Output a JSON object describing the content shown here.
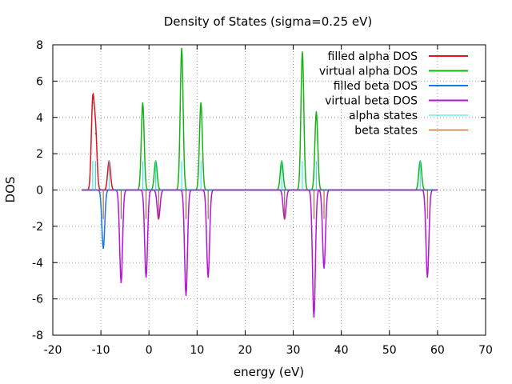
{
  "chart_data": {
    "type": "line",
    "title": "Density of States (sigma=0.25 eV)",
    "xlabel": "energy (eV)",
    "ylabel": "DOS",
    "xlim": [
      -20,
      70
    ],
    "ylim": [
      -8,
      8
    ],
    "xticks": [
      -20,
      -10,
      0,
      10,
      20,
      30,
      40,
      50,
      60,
      70
    ],
    "yticks": [
      -8,
      -6,
      -4,
      -2,
      0,
      2,
      4,
      6,
      8
    ],
    "grid": true,
    "legend_position": "top-right",
    "x_range": [
      -14,
      60
    ],
    "series": [
      {
        "name": "filled alpha DOS",
        "color": "#e0141e",
        "kind": "dos",
        "sign": 1,
        "peaks": [
          {
            "e": -11.7,
            "h": 4.8
          },
          {
            "e": -11.1,
            "h": 3.1
          },
          {
            "e": -8.3,
            "h": 1.6
          }
        ]
      },
      {
        "name": "virtual alpha DOS",
        "color": "#14b414",
        "kind": "dos",
        "sign": 1,
        "peaks": [
          {
            "e": -1.3,
            "h": 4.8
          },
          {
            "e": 1.4,
            "h": 1.6
          },
          {
            "e": 6.8,
            "h": 7.8
          },
          {
            "e": 10.8,
            "h": 4.8
          },
          {
            "e": 27.6,
            "h": 1.6
          },
          {
            "e": 31.9,
            "h": 7.6
          },
          {
            "e": 34.8,
            "h": 4.3
          },
          {
            "e": 56.4,
            "h": 1.6
          }
        ]
      },
      {
        "name": "filled beta DOS",
        "color": "#1478dc",
        "kind": "dos",
        "sign": -1,
        "peaks": [
          {
            "e": -9.5,
            "h": 3.2
          }
        ]
      },
      {
        "name": "virtual beta DOS",
        "color": "#b414dc",
        "kind": "dos",
        "sign": -1,
        "peaks": [
          {
            "e": -5.8,
            "h": 5.1
          },
          {
            "e": -0.6,
            "h": 4.8
          },
          {
            "e": 2.0,
            "h": 1.6
          },
          {
            "e": 7.7,
            "h": 5.8
          },
          {
            "e": 12.3,
            "h": 4.8
          },
          {
            "e": 28.2,
            "h": 1.6
          },
          {
            "e": 34.3,
            "h": 7.0
          },
          {
            "e": 36.4,
            "h": 4.3
          },
          {
            "e": 57.9,
            "h": 4.8
          }
        ]
      },
      {
        "name": "alpha states",
        "color": "#1ee6e6",
        "kind": "sticks",
        "sign": 1,
        "peaks": [
          {
            "e": -11.7,
            "h": 1.6
          },
          {
            "e": -11.1,
            "h": 1.6
          },
          {
            "e": -8.3,
            "h": 1.6
          },
          {
            "e": -1.3,
            "h": 1.6
          },
          {
            "e": 1.4,
            "h": 1.6
          },
          {
            "e": 6.8,
            "h": 1.6
          },
          {
            "e": 10.8,
            "h": 1.6
          },
          {
            "e": 27.6,
            "h": 1.6
          },
          {
            "e": 31.9,
            "h": 1.6
          },
          {
            "e": 34.8,
            "h": 1.6
          },
          {
            "e": 56.4,
            "h": 1.6
          }
        ]
      },
      {
        "name": "beta states",
        "color": "#a0501e",
        "kind": "sticks",
        "sign": -1,
        "peaks": [
          {
            "e": -9.5,
            "h": 1.6
          },
          {
            "e": -5.8,
            "h": 1.6
          },
          {
            "e": -0.6,
            "h": 1.6
          },
          {
            "e": 2.0,
            "h": 1.6
          },
          {
            "e": 7.7,
            "h": 1.6
          },
          {
            "e": 12.3,
            "h": 1.6
          },
          {
            "e": 28.2,
            "h": 1.6
          },
          {
            "e": 34.3,
            "h": 1.6
          },
          {
            "e": 36.4,
            "h": 1.6
          },
          {
            "e": 57.9,
            "h": 1.6
          }
        ]
      }
    ]
  }
}
